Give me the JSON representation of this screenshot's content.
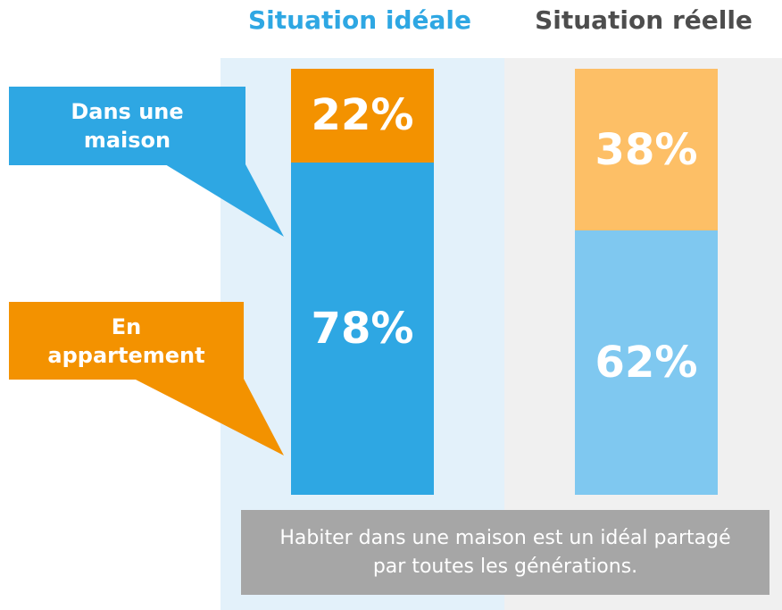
{
  "chart_data": {
    "type": "bar",
    "stacked": true,
    "categories": [
      "Situation idéale",
      "Situation réelle"
    ],
    "category_colors": [
      "#2ea7e3",
      "#4d4d4d"
    ],
    "series": [
      {
        "name": "Dans une maison",
        "color": "#2ea7e3",
        "colors": [
          "#2ea7e3",
          "#7fc8f0"
        ],
        "values": [
          78,
          62
        ],
        "value_labels": [
          "78%",
          "62%"
        ]
      },
      {
        "name": "En appartement",
        "color": "#f39200",
        "colors": [
          "#f39200",
          "#fdbf66"
        ],
        "values": [
          22,
          38
        ],
        "value_labels": [
          "22%",
          "38%"
        ]
      }
    ],
    "annotation": "Habiter dans une maison est un idéal partagé par toutes les générations."
  }
}
